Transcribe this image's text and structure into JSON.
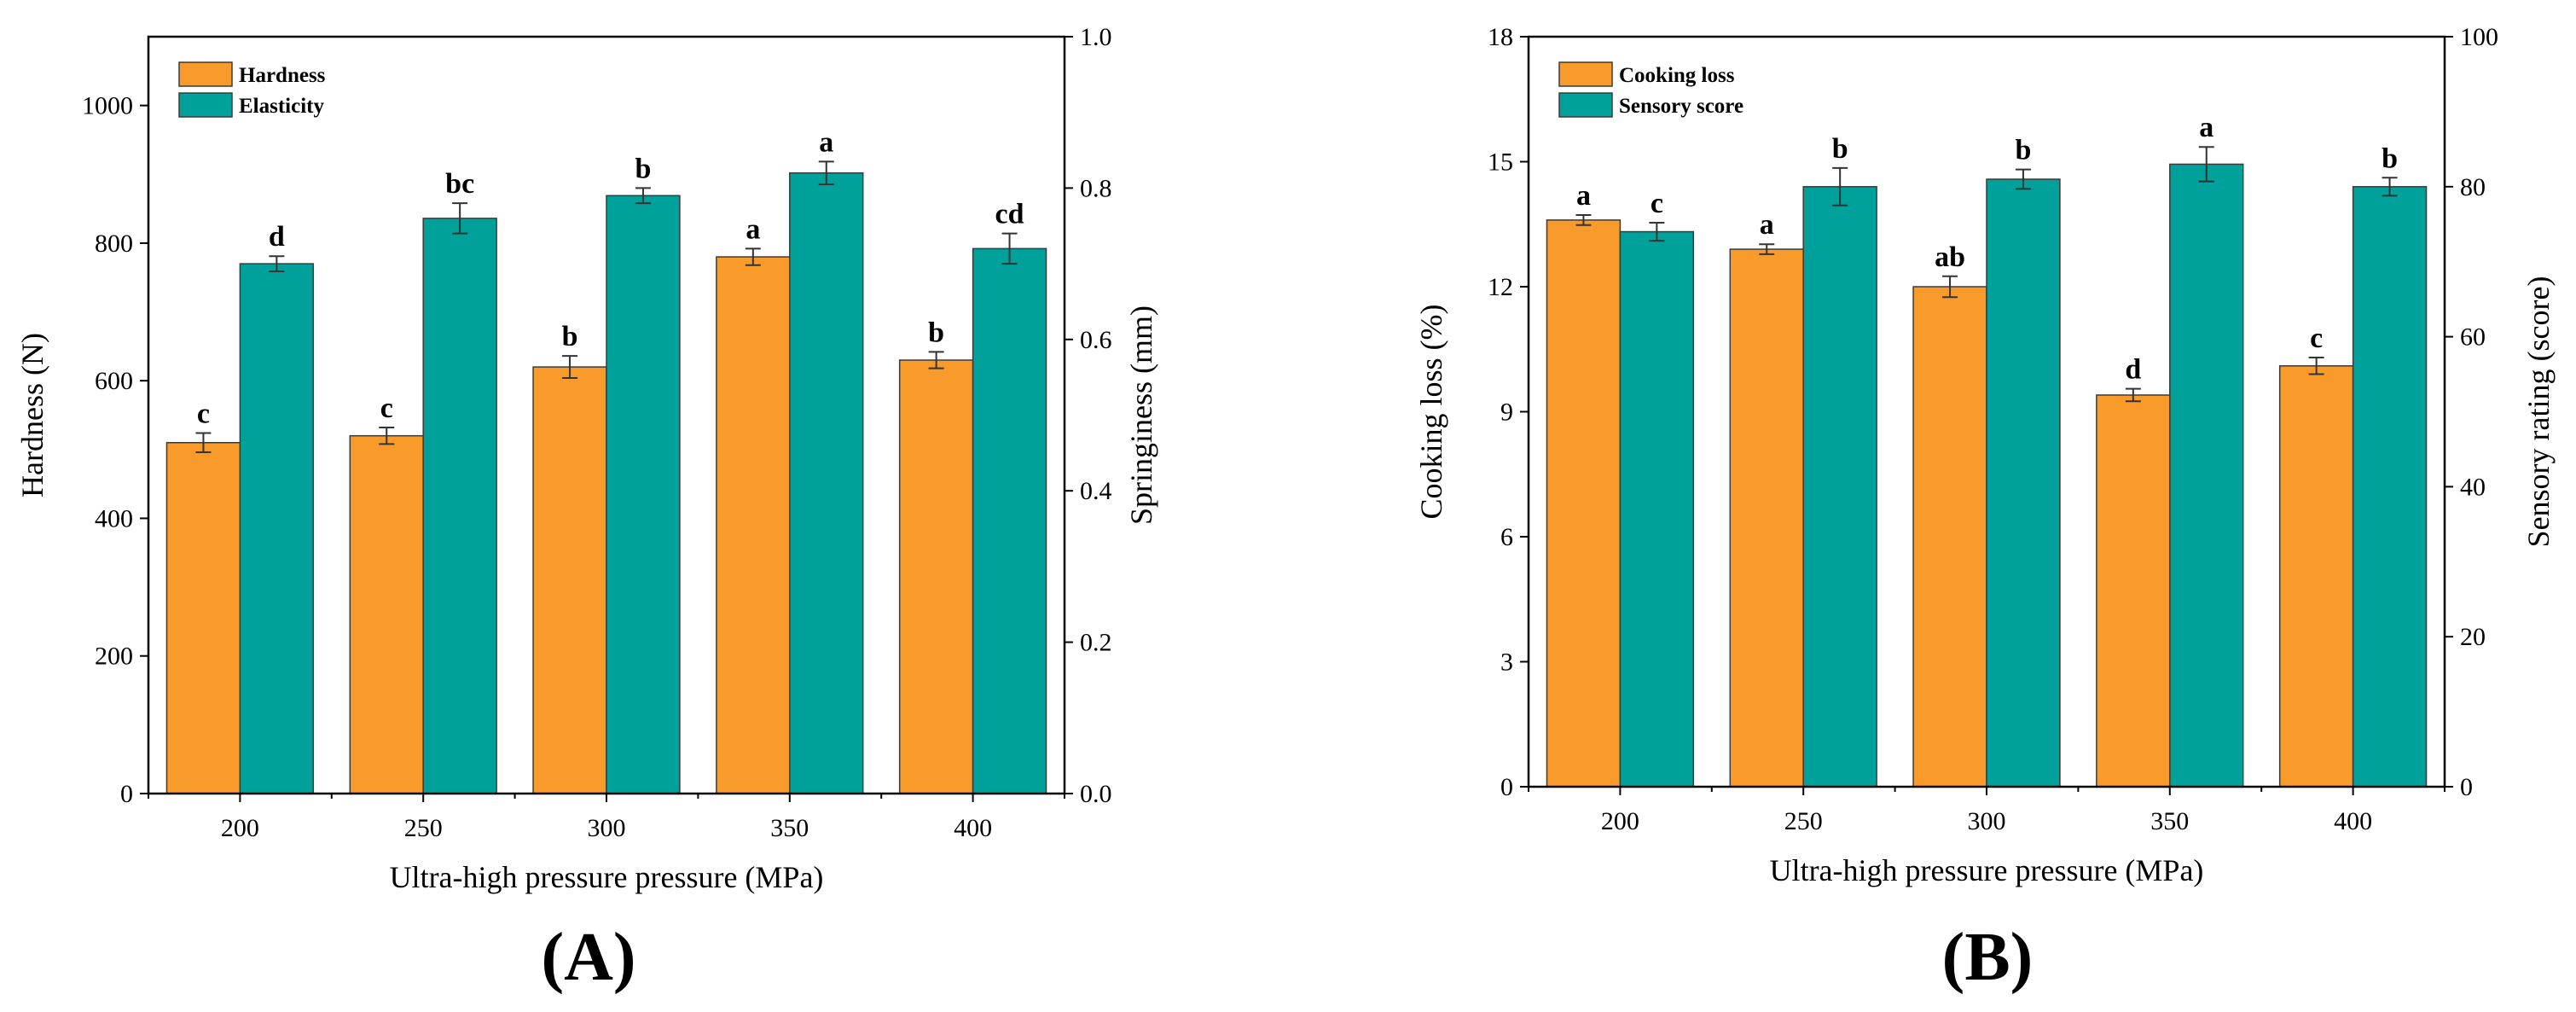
{
  "chart_data": [
    {
      "type": "bar",
      "panel_label": "(A)",
      "categories": [
        "200",
        "250",
        "300",
        "350",
        "400"
      ],
      "xlabel": "Ultra-high pressure pressure (MPa)",
      "ylabel_left": "Hardness (N)",
      "ylabel_right": "Springiness (mm)",
      "ylim_left": [
        0,
        1100
      ],
      "yticks_left": [
        0,
        200,
        400,
        600,
        800,
        1000
      ],
      "ylim_right": [
        0,
        1.0
      ],
      "yticks_right": [
        "0.0",
        "0.2",
        "0.4",
        "0.6",
        "0.8",
        "1.0"
      ],
      "legend_position": "top-left",
      "series": [
        {
          "name": "Hardness",
          "axis": "left",
          "color": "#F89B2A",
          "values": [
            510,
            520,
            620,
            780,
            630
          ],
          "errors": [
            14,
            12,
            16,
            12,
            12
          ],
          "labels": [
            "c",
            "c",
            "b",
            "a",
            "b"
          ]
        },
        {
          "name": "Elasticity",
          "axis": "right",
          "color": "#00A19A",
          "values": [
            0.7,
            0.76,
            0.79,
            0.82,
            0.72
          ],
          "errors": [
            0.01,
            0.02,
            0.01,
            0.015,
            0.02
          ],
          "labels": [
            "d",
            "bc",
            "b",
            "a",
            "cd"
          ]
        }
      ]
    },
    {
      "type": "bar",
      "panel_label": "(B)",
      "categories": [
        "200",
        "250",
        "300",
        "350",
        "400"
      ],
      "xlabel": "Ultra-high pressure pressure (MPa)",
      "ylabel_left": "Cooking loss (%)",
      "ylabel_right": "Sensory rating (score)",
      "ylim_left": [
        0,
        18
      ],
      "yticks_left": [
        0,
        3,
        6,
        9,
        12,
        15,
        18
      ],
      "ylim_right": [
        0,
        100
      ],
      "yticks_right": [
        0,
        20,
        40,
        60,
        80,
        100
      ],
      "legend_position": "top-left",
      "series": [
        {
          "name": "Cooking loss",
          "axis": "left",
          "color": "#F89B2A",
          "values": [
            13.6,
            12.9,
            12.0,
            9.4,
            10.1
          ],
          "errors": [
            0.12,
            0.12,
            0.25,
            0.15,
            0.2
          ],
          "labels": [
            "a",
            "a",
            "ab",
            "d",
            "c"
          ]
        },
        {
          "name": "Sensory score",
          "axis": "right",
          "color": "#00A19A",
          "values": [
            74,
            80,
            81,
            83,
            80
          ],
          "errors": [
            1.2,
            2.5,
            1.3,
            2.3,
            1.2
          ],
          "labels": [
            "c",
            "b",
            "b",
            "a",
            "b"
          ]
        }
      ]
    }
  ]
}
